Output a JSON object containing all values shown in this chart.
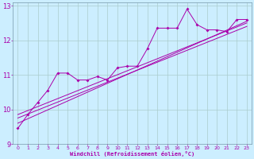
{
  "xlabel": "Windchill (Refroidissement éolien,°C)",
  "bg_color": "#cceeff",
  "line_color": "#aa00aa",
  "grid_color": "#aacccc",
  "xlim": [
    -0.5,
    23.5
  ],
  "ylim": [
    9,
    13.1
  ],
  "xticks": [
    0,
    1,
    2,
    3,
    4,
    5,
    6,
    7,
    8,
    9,
    10,
    11,
    12,
    13,
    14,
    15,
    16,
    17,
    18,
    19,
    20,
    21,
    22,
    23
  ],
  "yticks": [
    9,
    10,
    11,
    12,
    13
  ],
  "main_line": [
    [
      0,
      9.45
    ],
    [
      1,
      9.85
    ],
    [
      2,
      10.2
    ],
    [
      3,
      10.55
    ],
    [
      4,
      11.05
    ],
    [
      5,
      11.05
    ],
    [
      6,
      10.85
    ],
    [
      7,
      10.85
    ],
    [
      8,
      10.95
    ],
    [
      9,
      10.85
    ],
    [
      10,
      11.2
    ],
    [
      11,
      11.25
    ],
    [
      12,
      11.25
    ],
    [
      13,
      11.75
    ],
    [
      14,
      12.35
    ],
    [
      15,
      12.35
    ],
    [
      16,
      12.35
    ],
    [
      17,
      12.9
    ],
    [
      18,
      12.45
    ],
    [
      19,
      12.3
    ],
    [
      20,
      12.3
    ],
    [
      21,
      12.25
    ],
    [
      22,
      12.6
    ],
    [
      23,
      12.6
    ]
  ],
  "reg_line1": [
    [
      0,
      9.6
    ],
    [
      23,
      12.55
    ]
  ],
  "reg_line2": [
    [
      0,
      9.75
    ],
    [
      23,
      12.4
    ]
  ],
  "reg_line3": [
    [
      0,
      9.85
    ],
    [
      23,
      12.5
    ]
  ]
}
